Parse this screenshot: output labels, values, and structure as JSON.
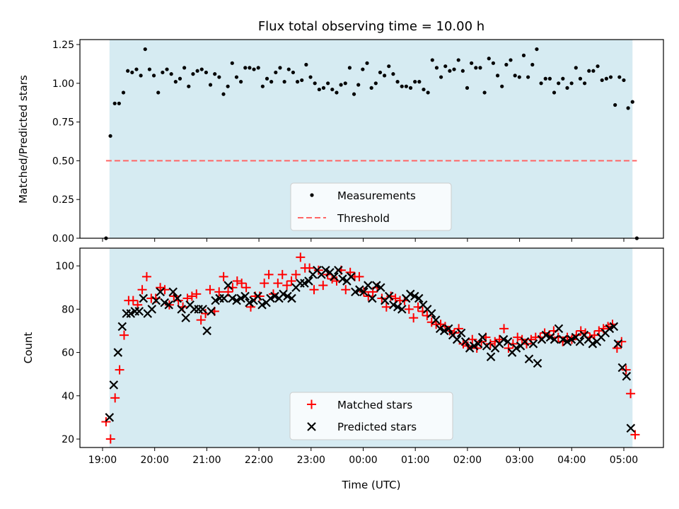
{
  "chart_data": [
    {
      "type": "scatter",
      "title": "Flux total observing time = 10.00 h",
      "xlabel": "",
      "ylabel": "Matched/Predicted stars",
      "ylim": [
        0,
        1.282
      ],
      "yticks": [
        "0.00",
        "0.25",
        "0.50",
        "0.75",
        "1.00",
        "1.25"
      ],
      "ytick_values": [
        0,
        0.25,
        0.5,
        0.75,
        1.0,
        1.25
      ],
      "xlim_hours_after_1900": [
        -0.434,
        10.76
      ],
      "shaded_span": {
        "start": "19:08",
        "end": "05:10",
        "color": "#add8e6"
      },
      "threshold": {
        "name": "Threshold",
        "value": 0.5,
        "start": "19:04",
        "end": "05:15",
        "color": "#ff6666",
        "style": "dashed"
      },
      "legend": {
        "placement": "bottom-center",
        "entries": [
          "Measurements",
          "Threshold"
        ]
      },
      "series": [
        {
          "name": "Measurements",
          "marker": "dot",
          "color": "#000000",
          "start": "19:04",
          "end": "05:15",
          "values": [
            0,
            0.66,
            0.87,
            0.87,
            0.94,
            1.08,
            1.07,
            1.09,
            1.05,
            1.22,
            1.09,
            1.05,
            0.94,
            1.07,
            1.09,
            1.06,
            1.01,
            1.03,
            1.1,
            0.98,
            1.06,
            1.08,
            1.09,
            1.07,
            0.99,
            1.06,
            1.04,
            0.93,
            0.98,
            1.13,
            1.04,
            1.01,
            1.1,
            1.1,
            1.09,
            1.1,
            0.98,
            1.03,
            1.01,
            1.07,
            1.1,
            1.01,
            1.09,
            1.07,
            1.01,
            1.02,
            1.12,
            1.04,
            1.0,
            0.96,
            0.97,
            1.0,
            0.96,
            0.94,
            0.99,
            1.0,
            1.1,
            0.93,
            0.99,
            1.09,
            1.13,
            0.97,
            1.0,
            1.07,
            1.05,
            1.11,
            1.06,
            1.01,
            0.98,
            0.98,
            0.97,
            1.01,
            1.01,
            0.96,
            0.94,
            1.15,
            1.1,
            1.04,
            1.11,
            1.08,
            1.09,
            1.15,
            1.08,
            0.97,
            1.13,
            1.1,
            1.1,
            0.94,
            1.16,
            1.13,
            1.05,
            0.98,
            1.12,
            1.15,
            1.05,
            1.04,
            1.18,
            1.04,
            1.12,
            1.22,
            1.0,
            1.03,
            1.03,
            0.94,
            1.0,
            1.03,
            0.97,
            1.0,
            1.1,
            1.03,
            1.0,
            1.08,
            1.08,
            1.11,
            1.02,
            1.03,
            1.04,
            0.86,
            1.04,
            1.02,
            0.84,
            0.88,
            0
          ]
        }
      ]
    },
    {
      "type": "scatter",
      "title": "",
      "xlabel": "Time (UTC)",
      "ylabel": "Count",
      "ylim": [
        16.1,
        108.2
      ],
      "yticks": [
        "20",
        "40",
        "60",
        "80",
        "100"
      ],
      "ytick_values": [
        20,
        40,
        60,
        80,
        100
      ],
      "xlim_hours_after_1900": [
        -0.434,
        10.76
      ],
      "xticks": [
        "19:00",
        "20:00",
        "21:00",
        "22:00",
        "23:00",
        "00:00",
        "01:00",
        "02:00",
        "03:00",
        "04:00",
        "05:00"
      ],
      "shaded_span": {
        "start": "19:08",
        "end": "05:10",
        "color": "#add8e6"
      },
      "legend": {
        "placement": "bottom-center",
        "entries": [
          "Matched stars",
          "Predicted stars"
        ]
      },
      "series": [
        {
          "name": "Matched stars",
          "marker": "plus",
          "color": "#ff0000",
          "start": "19:04",
          "end": "05:13",
          "values": [
            28,
            20,
            39,
            52,
            68,
            84,
            84,
            82,
            89,
            95,
            85,
            85,
            90,
            89,
            82,
            86,
            84,
            81,
            85,
            86,
            87,
            75,
            78,
            89,
            79,
            88,
            95,
            88,
            90,
            93,
            92,
            90,
            81,
            86,
            86,
            92,
            96,
            87,
            92,
            96,
            91,
            93,
            96,
            104,
            99,
            99,
            89,
            98,
            91,
            96,
            94,
            93,
            98,
            89,
            97,
            95,
            95,
            88,
            86,
            88,
            90,
            85,
            81,
            86,
            85,
            84,
            84,
            80,
            76,
            81,
            79,
            77,
            74,
            73,
            73,
            72,
            70,
            69,
            71,
            64,
            63,
            66,
            62,
            65,
            67,
            64,
            65,
            66,
            71,
            62,
            64,
            67,
            66,
            64,
            66,
            67,
            67,
            69,
            68,
            70,
            67,
            65,
            67,
            66,
            68,
            70,
            69,
            67,
            68,
            70,
            71,
            72,
            73,
            62,
            65,
            52,
            41,
            22
          ]
        },
        {
          "name": "Predicted stars",
          "marker": "x",
          "color": "#000000",
          "start": "19:08",
          "end": "05:08",
          "values": [
            30,
            45,
            60,
            72,
            78,
            78,
            79,
            79,
            85,
            78,
            80,
            84,
            88,
            83,
            82,
            88,
            85,
            80,
            76,
            82,
            80,
            80,
            80,
            70,
            79,
            84,
            85,
            85,
            91,
            85,
            84,
            85,
            86,
            83,
            84,
            86,
            82,
            83,
            85,
            86,
            85,
            87,
            86,
            85,
            90,
            92,
            92,
            93,
            96,
            98,
            96,
            98,
            97,
            95,
            98,
            94,
            93,
            95,
            88,
            89,
            88,
            91,
            85,
            91,
            90,
            84,
            86,
            82,
            81,
            80,
            85,
            87,
            86,
            85,
            82,
            80,
            78,
            75,
            71,
            70,
            71,
            68,
            66,
            69,
            65,
            62,
            63,
            64,
            67,
            63,
            58,
            62,
            64,
            66,
            65,
            60,
            62,
            63,
            65,
            57,
            64,
            55,
            66,
            68,
            67,
            66,
            71,
            66,
            65,
            66,
            67,
            65,
            68,
            66,
            64,
            65,
            67,
            69,
            71,
            72,
            64,
            53,
            49,
            25
          ]
        }
      ]
    }
  ]
}
